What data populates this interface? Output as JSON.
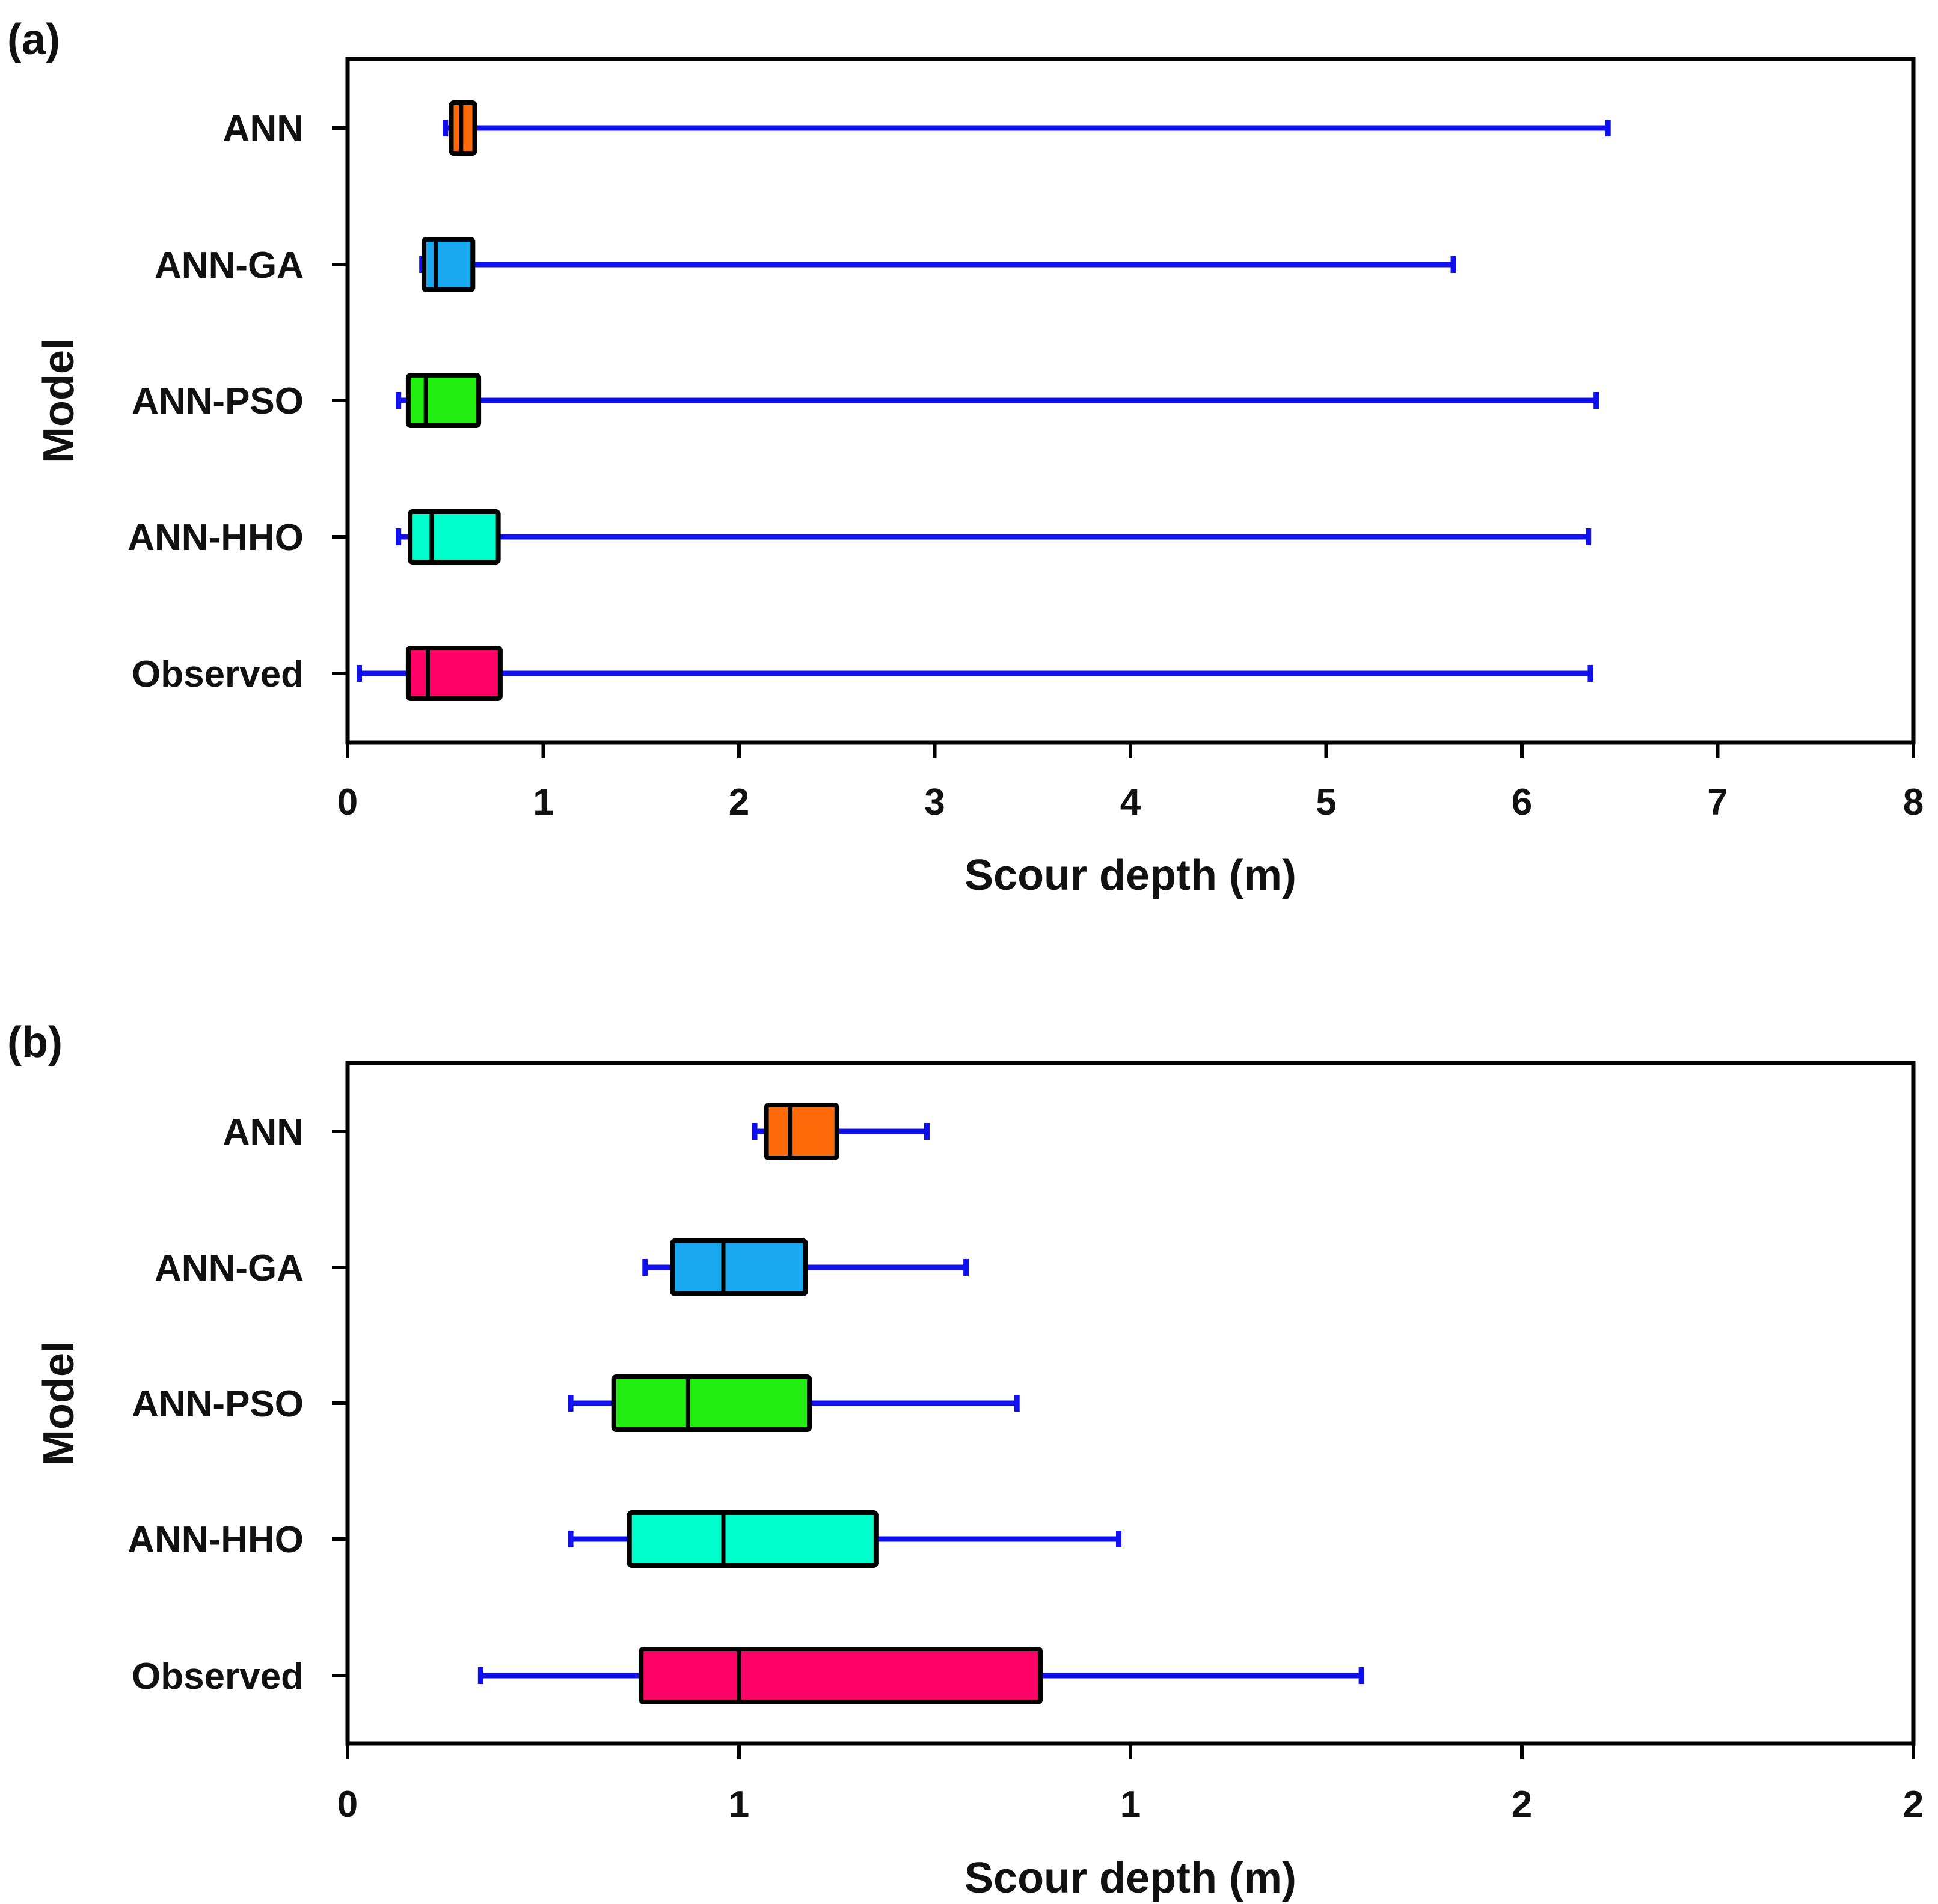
{
  "colors": {
    "whisker": "#1010ee",
    "box_stroke": "#000000",
    "frame": "#000000"
  },
  "chart_data": [
    {
      "type": "boxplot",
      "orientation": "horizontal",
      "panel_label": "(a)",
      "xlabel": "Scour depth (m)",
      "ylabel": "Model",
      "xlim": [
        0,
        8
      ],
      "x_ticks": [
        0,
        1,
        2,
        3,
        4,
        5,
        6,
        7,
        8
      ],
      "x_tick_labels": [
        "0",
        "1",
        "2",
        "3",
        "4",
        "5",
        "6",
        "7",
        "8"
      ],
      "series": [
        {
          "name": "ANN",
          "color": "#ff6a0a",
          "min": 0.5,
          "q1": 0.53,
          "median": 0.58,
          "q3": 0.65,
          "max": 6.44
        },
        {
          "name": "ANN-GA",
          "color": "#1aa8f0",
          "min": 0.38,
          "q1": 0.39,
          "median": 0.45,
          "q3": 0.64,
          "max": 5.65
        },
        {
          "name": "ANN-PSO",
          "color": "#22ee11",
          "min": 0.26,
          "q1": 0.31,
          "median": 0.4,
          "q3": 0.67,
          "max": 6.38
        },
        {
          "name": "ANN-HHO",
          "color": "#00ffcc",
          "min": 0.26,
          "q1": 0.32,
          "median": 0.43,
          "q3": 0.77,
          "max": 6.34
        },
        {
          "name": "Observed",
          "color": "#ff0066",
          "min": 0.06,
          "q1": 0.31,
          "median": 0.41,
          "q3": 0.78,
          "max": 6.35
        }
      ]
    },
    {
      "type": "boxplot",
      "orientation": "horizontal",
      "panel_label": "(b)",
      "xlabel": "Scour depth (m)",
      "ylabel": "Model",
      "xlim": [
        0,
        2
      ],
      "x_ticks": [
        0,
        0.5,
        1,
        1.5,
        2
      ],
      "x_tick_labels": [
        "0",
        "1",
        "1",
        "2",
        "2"
      ],
      "series": [
        {
          "name": "ANN",
          "color": "#ff6a0a",
          "min": 0.52,
          "q1": 0.535,
          "median": 0.565,
          "q3": 0.625,
          "max": 0.74
        },
        {
          "name": "ANN-GA",
          "color": "#1aa8f0",
          "min": 0.38,
          "q1": 0.415,
          "median": 0.48,
          "q3": 0.585,
          "max": 0.79
        },
        {
          "name": "ANN-PSO",
          "color": "#22ee11",
          "min": 0.285,
          "q1": 0.34,
          "median": 0.435,
          "q3": 0.59,
          "max": 0.855
        },
        {
          "name": "ANN-HHO",
          "color": "#00ffcc",
          "min": 0.285,
          "q1": 0.36,
          "median": 0.48,
          "q3": 0.675,
          "max": 0.985
        },
        {
          "name": "Observed",
          "color": "#ff0066",
          "min": 0.17,
          "q1": 0.375,
          "median": 0.5,
          "q3": 0.885,
          "max": 1.295
        }
      ]
    }
  ]
}
